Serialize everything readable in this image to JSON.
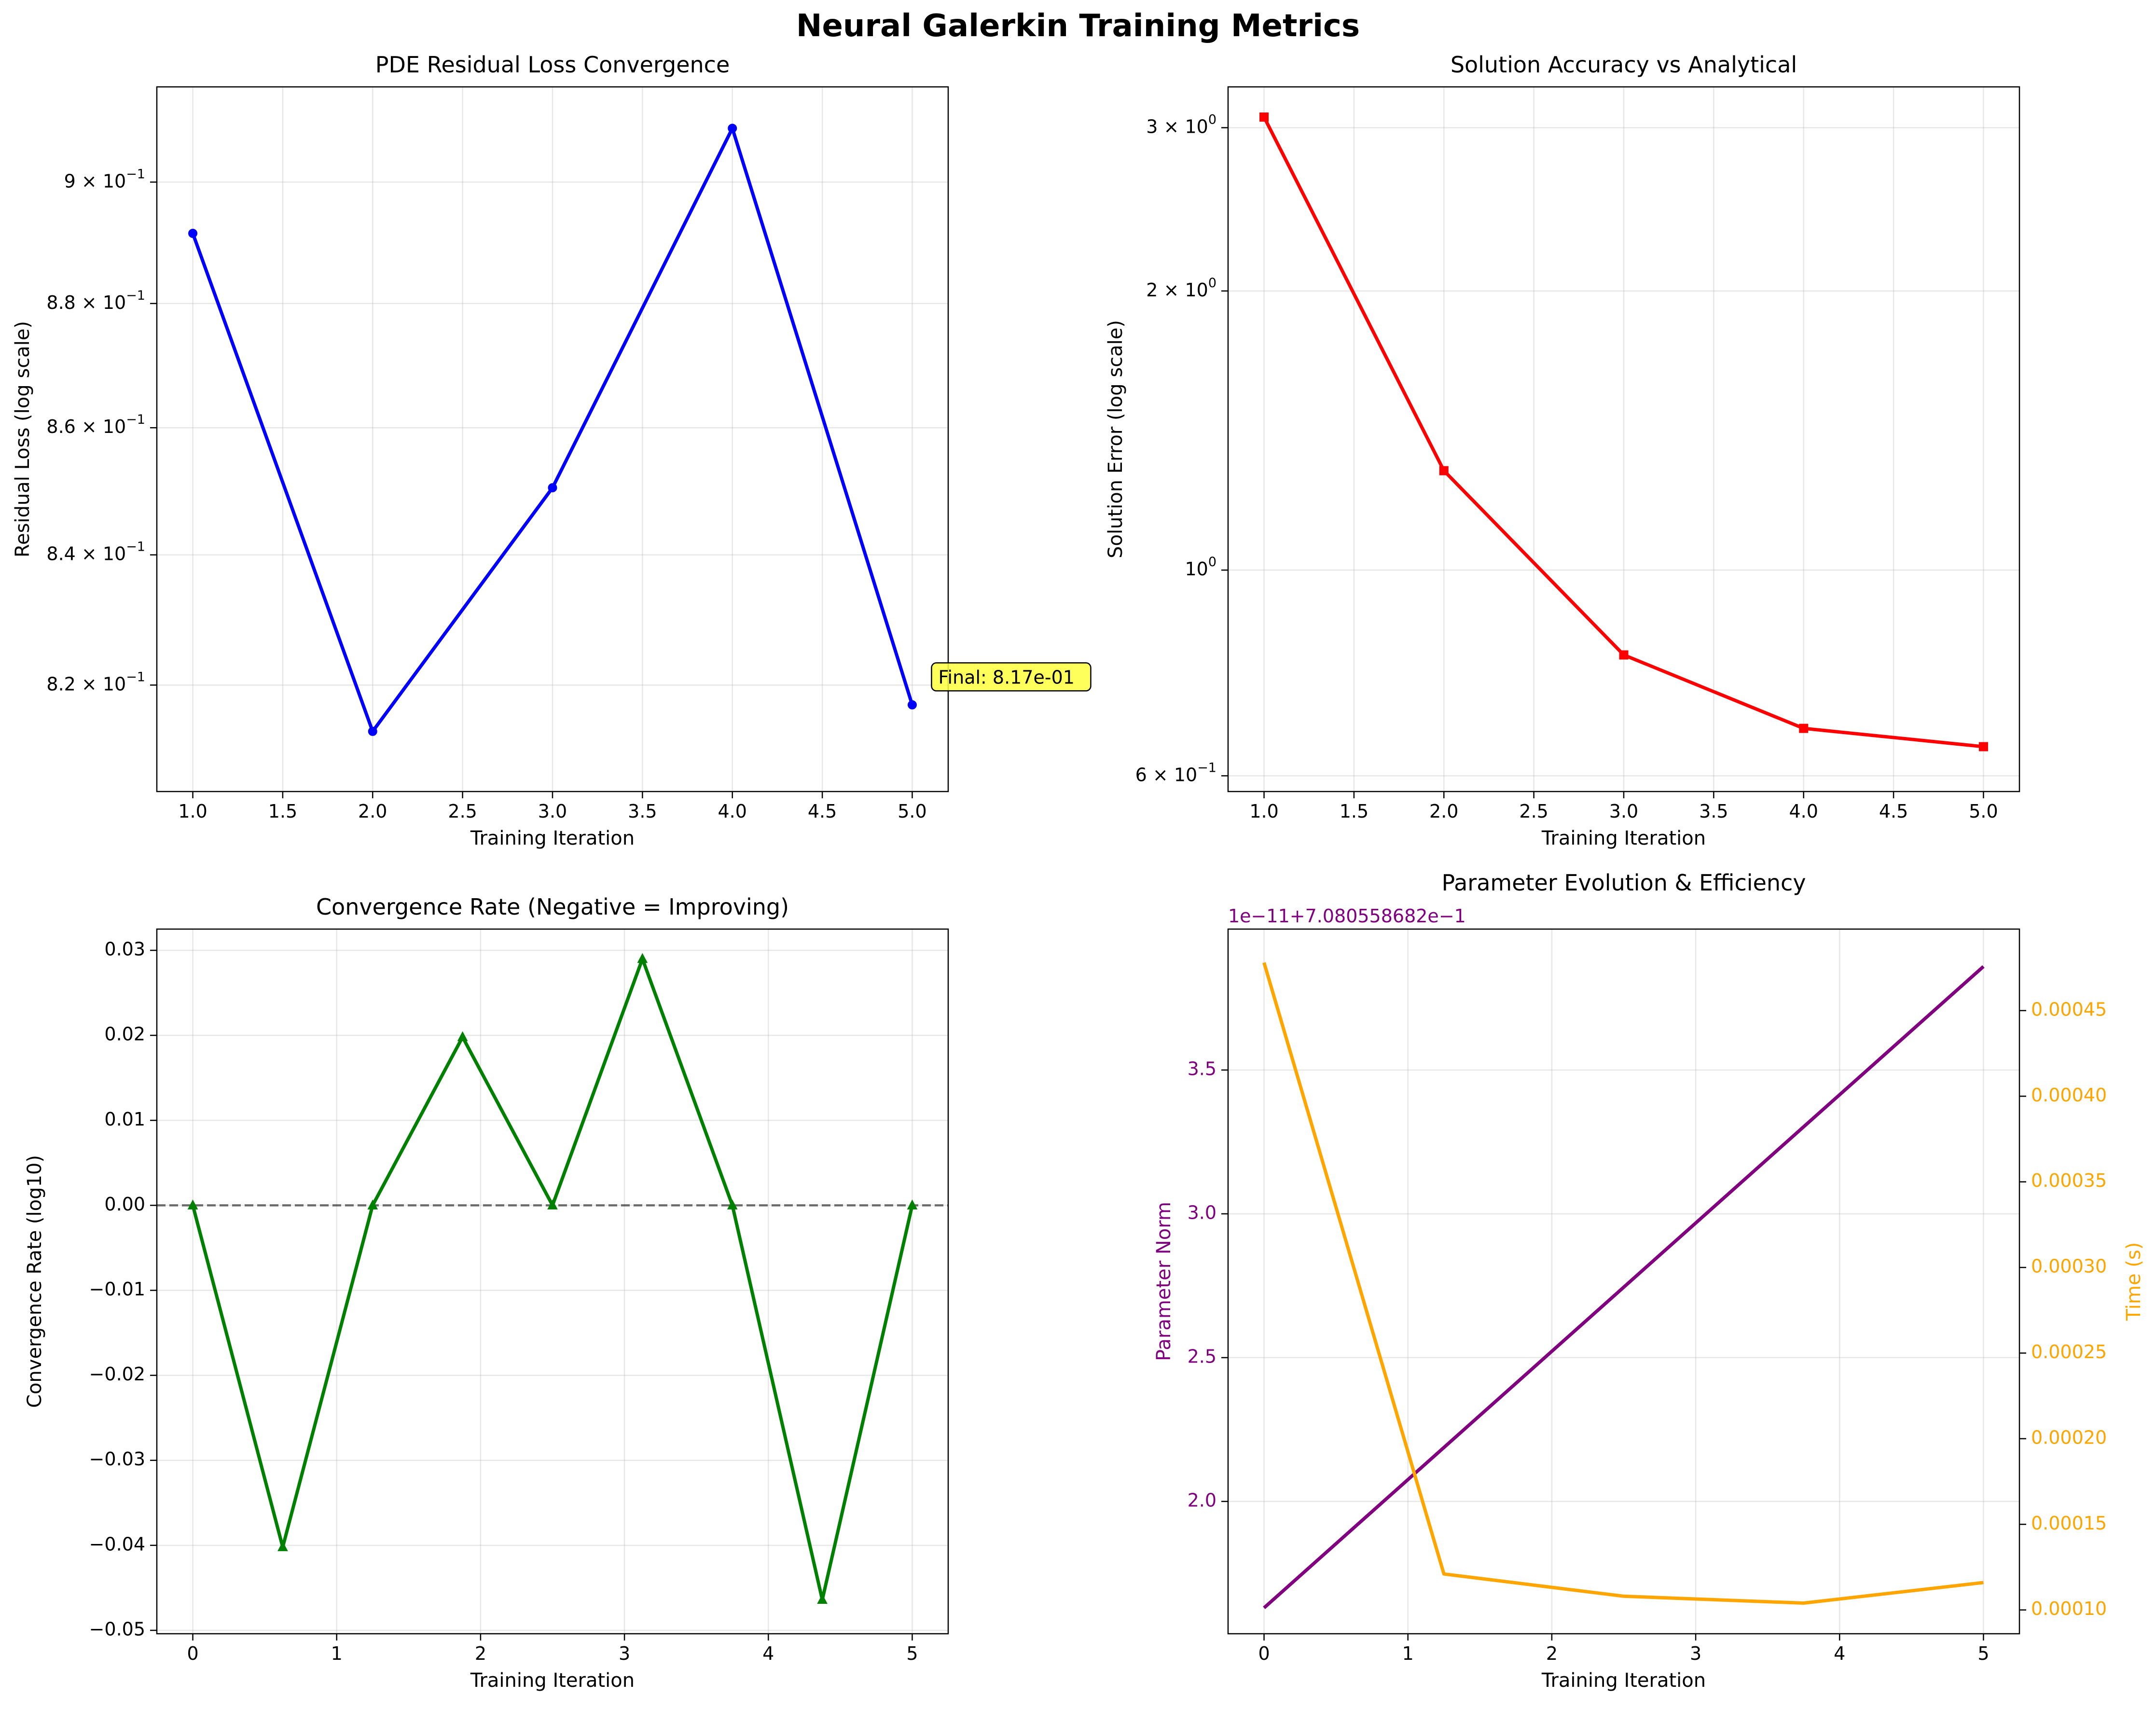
{
  "figure": {
    "title": "Neural Galerkin Training Metrics"
  },
  "chart_data": [
    {
      "type": "line",
      "title": "PDE Residual Loss Convergence",
      "xlabel": "Training Iteration",
      "ylabel": "Residual Loss (log scale)",
      "yscale": "log",
      "grid": true,
      "x": [
        1,
        2,
        3,
        4,
        5
      ],
      "xlim": [
        0.8,
        5.2
      ],
      "ylim": [
        0.804,
        0.916
      ],
      "xticks": [
        "1.0",
        "1.5",
        "2.0",
        "2.5",
        "3.0",
        "3.5",
        "4.0",
        "4.5",
        "5.0"
      ],
      "xtick_values": [
        1.0,
        1.5,
        2.0,
        2.5,
        3.0,
        3.5,
        4.0,
        4.5,
        5.0
      ],
      "ytick_values": [
        0.82,
        0.84,
        0.86,
        0.88,
        0.9
      ],
      "yticks": [
        {
          "base": "8.2 × 10",
          "exp": "−1"
        },
        {
          "base": "8.4 × 10",
          "exp": "−1"
        },
        {
          "base": "8.6 × 10",
          "exp": "−1"
        },
        {
          "base": "8.8 × 10",
          "exp": "−1"
        },
        {
          "base": "9 × 10",
          "exp": "−1"
        }
      ],
      "series": [
        {
          "values": [
            0.8915,
            0.813,
            0.8505,
            0.909,
            0.817
          ],
          "color": "#0000ff",
          "marker": "circle"
        }
      ],
      "annotation": {
        "text": "Final: 8.17e-01",
        "x": 5,
        "y": 0.817,
        "background": "#ffff40"
      }
    },
    {
      "type": "line",
      "title": "Solution Accuracy vs Analytical",
      "xlabel": "Training Iteration",
      "ylabel": "Solution Error (log scale)",
      "yscale": "log",
      "grid": true,
      "x": [
        1,
        2,
        3,
        4,
        5
      ],
      "xlim": [
        0.8,
        5.2
      ],
      "ylim": [
        0.577,
        3.32
      ],
      "xticks": [
        "1.0",
        "1.5",
        "2.0",
        "2.5",
        "3.0",
        "3.5",
        "4.0",
        "4.5",
        "5.0"
      ],
      "xtick_values": [
        1.0,
        1.5,
        2.0,
        2.5,
        3.0,
        3.5,
        4.0,
        4.5,
        5.0
      ],
      "ytick_values": [
        0.6,
        1.0,
        2.0,
        3.0
      ],
      "yticks": [
        {
          "base": "6 × 10",
          "exp": "−1"
        },
        {
          "base": "10",
          "exp": "0"
        },
        {
          "base": "2 × 10",
          "exp": "0"
        },
        {
          "base": "3 × 10",
          "exp": "0"
        }
      ],
      "series": [
        {
          "values": [
            3.08,
            1.28,
            0.81,
            0.675,
            0.645
          ],
          "color": "#ff0000",
          "marker": "square"
        }
      ]
    },
    {
      "type": "line",
      "title": "Convergence Rate (Negative = Improving)",
      "xlabel": "Training Iteration",
      "ylabel": "Convergence Rate (log10)",
      "grid": true,
      "x": [
        0,
        0.625,
        1.25,
        1.875,
        2.5,
        3.125,
        3.75,
        4.375,
        5.0
      ],
      "xlim": [
        -0.25,
        5.25
      ],
      "ylim": [
        -0.0504,
        0.0325
      ],
      "xticks": [
        "0",
        "1",
        "2",
        "3",
        "4",
        "5"
      ],
      "xtick_values": [
        0,
        1,
        2,
        3,
        4,
        5
      ],
      "yticks": [
        "−0.05",
        "−0.04",
        "−0.03",
        "−0.02",
        "−0.01",
        "0.00",
        "0.01",
        "0.02",
        "0.03"
      ],
      "ytick_values": [
        -0.05,
        -0.04,
        -0.03,
        -0.02,
        -0.01,
        0.0,
        0.01,
        0.02,
        0.03
      ],
      "reference_line": {
        "y": 0,
        "style": "dashed",
        "color": "#000000"
      },
      "series": [
        {
          "values": [
            0.0,
            -0.0402,
            0.0,
            0.0198,
            0.0,
            0.029,
            0.0,
            -0.0464,
            0.0
          ],
          "color": "#008000",
          "marker": "triangle"
        }
      ]
    },
    {
      "type": "line",
      "title": "Parameter Evolution & Efficiency",
      "xlabel": "Training Iteration",
      "ylabel": "Parameter Norm",
      "ylabel_right": "Time (s)",
      "offset_text": "1e−11+7.080558682e−1",
      "grid": true,
      "x": [
        0,
        1.25,
        2.5,
        3.75,
        5.0
      ],
      "xlim": [
        -0.25,
        5.25
      ],
      "ylim": [
        1.54,
        3.99
      ],
      "ylim_right": [
        8.61e-05,
        0.0004976
      ],
      "xticks": [
        "0",
        "1",
        "2",
        "3",
        "4",
        "5"
      ],
      "xtick_values": [
        0,
        1,
        2,
        3,
        4,
        5
      ],
      "yticks": [
        "2.0",
        "2.5",
        "3.0",
        "3.5"
      ],
      "ytick_values": [
        2.0,
        2.5,
        3.0,
        3.5
      ],
      "yticks_right": [
        "0.00010",
        "0.00015",
        "0.00020",
        "0.00025",
        "0.00030",
        "0.00035",
        "0.00040",
        "0.00045"
      ],
      "ytick_values_right": [
        0.0001,
        0.00015,
        0.0002,
        0.00025,
        0.0003,
        0.00035,
        0.0004,
        0.00045
      ],
      "series": [
        {
          "axis": "left",
          "x": [
            0,
            5
          ],
          "values": [
            1.63,
            3.86
          ],
          "color": "#800080"
        },
        {
          "axis": "right",
          "values": [
            0.000478,
            0.000121,
            0.000108,
            0.000104,
            0.000116
          ],
          "color": "#ffa500"
        }
      ]
    }
  ]
}
